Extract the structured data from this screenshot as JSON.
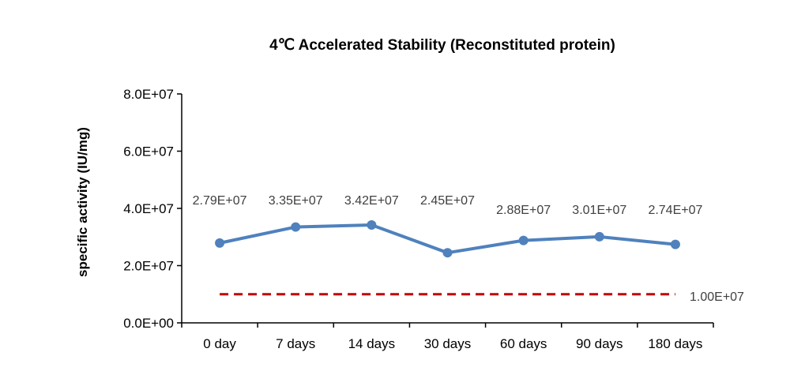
{
  "chart_data": {
    "type": "line",
    "title": "4℃ Accelerated Stability (Reconstituted protein)",
    "xlabel": "",
    "ylabel": "specific activity (IU/mg)",
    "categories": [
      "0 day",
      "7 days",
      "14 days",
      "30 days",
      "60 days",
      "90 days",
      "180 days"
    ],
    "ylim": [
      0,
      80000000
    ],
    "yticks": [
      0,
      20000000,
      40000000,
      60000000,
      80000000
    ],
    "ytick_labels": [
      "0.0E+00",
      "2.0E+07",
      "4.0E+07",
      "6.0E+07",
      "8.0E+07"
    ],
    "grid": false,
    "legend": "none",
    "series": [
      {
        "values": [
          27900000,
          33500000,
          34200000,
          24500000,
          28800000,
          30100000,
          27400000
        ],
        "data_labels": [
          "2.79E+07",
          "3.35E+07",
          "3.42E+07",
          "2.45E+07",
          "2.88E+07",
          "3.01E+07",
          "2.74E+07"
        ],
        "color": "#4f81bd",
        "style": "solid-markers"
      }
    ],
    "reference_line": {
      "value": 10000000,
      "label": "1.00E+07",
      "color": "#c00000",
      "style": "dashed"
    }
  }
}
